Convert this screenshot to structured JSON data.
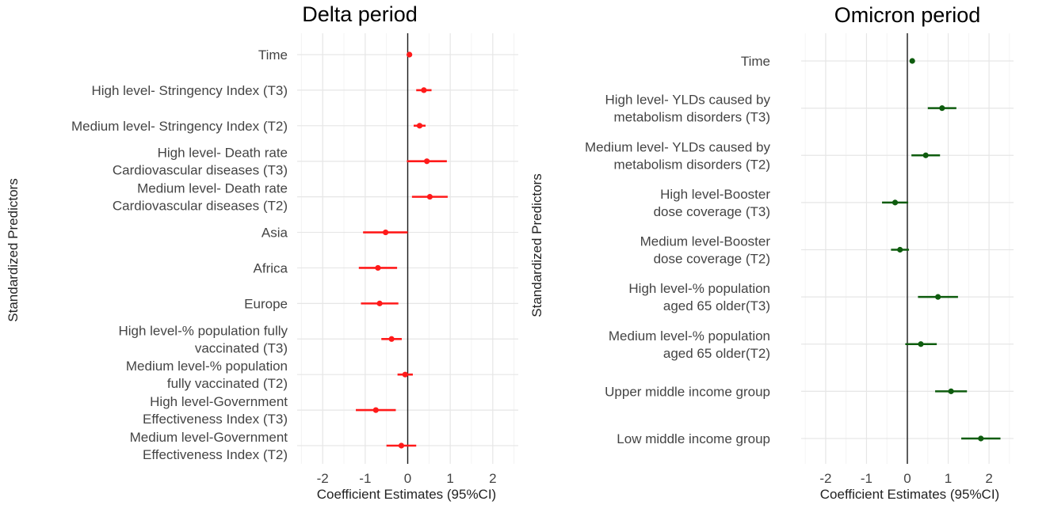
{
  "chart_data": [
    {
      "type": "forest",
      "title": "Delta period",
      "xlabel": "Coefficient Estimates (95%CI)",
      "ylabel": "Standardized Predictors",
      "xlim": [
        -2.6,
        2.6
      ],
      "xticks": [
        -2,
        -1,
        0,
        1,
        2
      ],
      "color": "#ff1a1a",
      "rows": [
        {
          "label": [
            "Time"
          ],
          "estimate": 0.04,
          "lower": 0.01,
          "upper": 0.07
        },
        {
          "label": [
            "High level- Stringency Index (T3)"
          ],
          "estimate": 0.38,
          "lower": 0.2,
          "upper": 0.56
        },
        {
          "label": [
            "Medium level- Stringency Index (T2)"
          ],
          "estimate": 0.28,
          "lower": 0.14,
          "upper": 0.42
        },
        {
          "label": [
            "High level- Death rate",
            "Cardiovascular diseases (T3)"
          ],
          "estimate": 0.45,
          "lower": -0.02,
          "upper": 0.92
        },
        {
          "label": [
            "Medium level- Death rate",
            "Cardiovascular diseases (T2)"
          ],
          "estimate": 0.52,
          "lower": 0.1,
          "upper": 0.94
        },
        {
          "label": [
            "Asia"
          ],
          "estimate": -0.52,
          "lower": -1.05,
          "upper": 0.0
        },
        {
          "label": [
            "Africa"
          ],
          "estimate": -0.7,
          "lower": -1.15,
          "upper": -0.25
        },
        {
          "label": [
            "Europe"
          ],
          "estimate": -0.66,
          "lower": -1.1,
          "upper": -0.22
        },
        {
          "label": [
            "High level-% population fully",
            "vaccinated (T3)"
          ],
          "estimate": -0.38,
          "lower": -0.62,
          "upper": -0.14
        },
        {
          "label": [
            "Medium level-% population",
            "fully vaccinated (T2)"
          ],
          "estimate": -0.06,
          "lower": -0.24,
          "upper": 0.12
        },
        {
          "label": [
            "High level-Government",
            "Effectiveness Index (T3)"
          ],
          "estimate": -0.75,
          "lower": -1.22,
          "upper": -0.28
        },
        {
          "label": [
            "Medium level-Government",
            "Effectiveness Index (T2)"
          ],
          "estimate": -0.15,
          "lower": -0.5,
          "upper": 0.2
        }
      ]
    },
    {
      "type": "forest",
      "title": "Omicron period",
      "xlabel": "Coefficient Estimates (95%CI)",
      "ylabel": "Standardized Predictors",
      "xlim": [
        -2.6,
        2.6
      ],
      "xticks": [
        -2,
        -1,
        0,
        1,
        2
      ],
      "color": "#0e5c0e",
      "rows": [
        {
          "label": [
            "Time"
          ],
          "estimate": 0.12,
          "lower": 0.09,
          "upper": 0.15
        },
        {
          "label": [
            "High level- YLDs caused by",
            "metabolism disorders (T3)"
          ],
          "estimate": 0.85,
          "lower": 0.5,
          "upper": 1.2
        },
        {
          "label": [
            "Medium level- YLDs caused by",
            "metabolism disorders (T2)"
          ],
          "estimate": 0.45,
          "lower": 0.1,
          "upper": 0.8
        },
        {
          "label": [
            "High level-Booster",
            "dose coverage (T3)"
          ],
          "estimate": -0.3,
          "lower": -0.62,
          "upper": 0.02
        },
        {
          "label": [
            "Medium level-Booster",
            "dose coverage (T2)"
          ],
          "estimate": -0.18,
          "lower": -0.4,
          "upper": 0.04
        },
        {
          "label": [
            "High level-% population",
            "aged 65 older(T3)"
          ],
          "estimate": 0.75,
          "lower": 0.26,
          "upper": 1.24
        },
        {
          "label": [
            "Medium level-% population",
            "aged 65 older(T2)"
          ],
          "estimate": 0.33,
          "lower": -0.05,
          "upper": 0.72
        },
        {
          "label": [
            "Upper middle income group"
          ],
          "estimate": 1.07,
          "lower": 0.68,
          "upper": 1.46
        },
        {
          "label": [
            "Low middle income group"
          ],
          "estimate": 1.8,
          "lower": 1.32,
          "upper": 2.28
        }
      ]
    }
  ]
}
